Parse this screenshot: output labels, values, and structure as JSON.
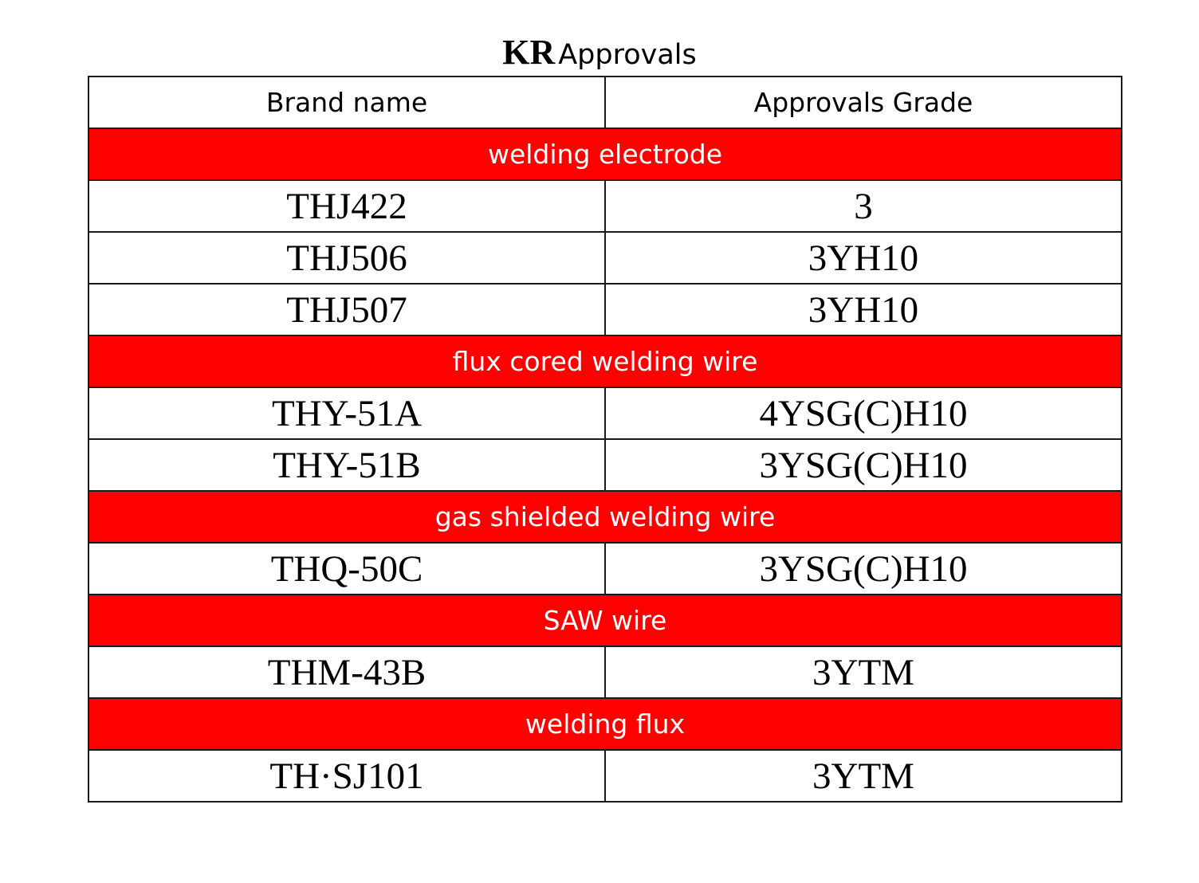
{
  "title": {
    "bold": "KR",
    "rest": "Approvals"
  },
  "colors": {
    "section_bg": "#fe0000",
    "section_text": "#ffffff",
    "border": "#1a1a1a"
  },
  "table": {
    "headers": [
      "Brand name",
      "Approvals Grade"
    ],
    "sections": [
      {
        "name": "welding electrode",
        "rows": [
          {
            "brand": "THJ422",
            "grade": "3"
          },
          {
            "brand": "THJ506",
            "grade": "3YH10"
          },
          {
            "brand": "THJ507",
            "grade": "3YH10"
          }
        ]
      },
      {
        "name": "flux cored welding wire",
        "rows": [
          {
            "brand": "THY-51A",
            "grade": "4YSG(C)H10"
          },
          {
            "brand": "THY-51B",
            "grade": "3YSG(C)H10"
          }
        ]
      },
      {
        "name": "gas shielded welding wire",
        "rows": [
          {
            "brand": "THQ-50C",
            "grade": "3YSG(C)H10"
          }
        ]
      },
      {
        "name": "SAW wire",
        "rows": [
          {
            "brand": "THM-43B",
            "grade": "3YTM"
          }
        ]
      },
      {
        "name": "welding flux",
        "rows": [
          {
            "brand": "TH·SJ101",
            "grade": "3YTM"
          }
        ]
      }
    ]
  }
}
